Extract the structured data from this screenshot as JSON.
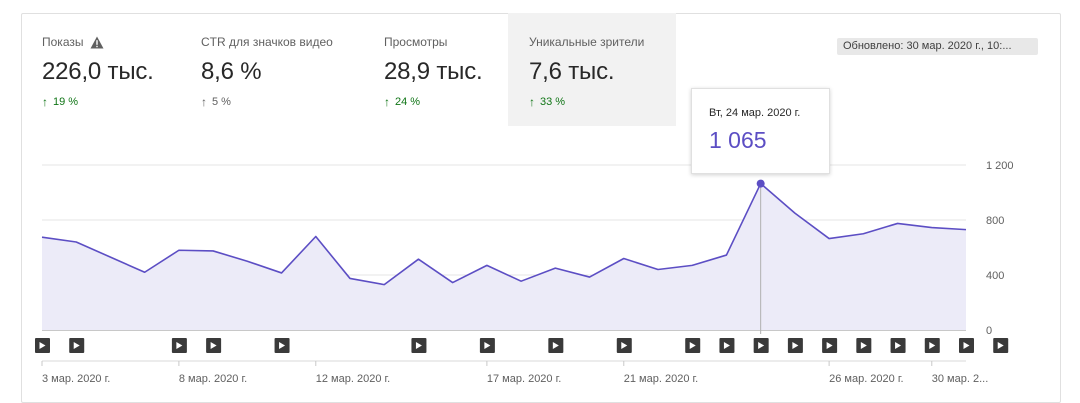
{
  "metrics": [
    {
      "label": "Показы",
      "value": "226,0 тыс.",
      "delta": "19 %",
      "trend": "up-strong",
      "warning": true,
      "selected": false
    },
    {
      "label": "CTR для значков видео",
      "value": "8,6 %",
      "delta": "5 %",
      "trend": "up-weak",
      "warning": false,
      "selected": false
    },
    {
      "label": "Просмотры",
      "value": "28,9 тыс.",
      "delta": "24 %",
      "trend": "up-strong",
      "warning": false,
      "selected": false
    },
    {
      "label": "Уникальные зрители",
      "value": "7,6 тыс.",
      "delta": "33 %",
      "trend": "up-strong",
      "warning": false,
      "selected": true
    }
  ],
  "updated": "Обновлено: 30 мар. 2020 г., 10:...",
  "tooltip": {
    "date": "Вт, 24 мар. 2020 г.",
    "value": "1 065"
  },
  "colors": {
    "line": "#5c4ec4",
    "area": "#ecebf8",
    "positive": "#107516"
  },
  "icons": {
    "warning": "warning-icon",
    "video": "play-icon",
    "trend": "arrow-up-icon"
  },
  "chart_data": {
    "type": "area",
    "x": [
      "2020-03-03",
      "2020-03-04",
      "2020-03-05",
      "2020-03-06",
      "2020-03-07",
      "2020-03-08",
      "2020-03-09",
      "2020-03-10",
      "2020-03-11",
      "2020-03-12",
      "2020-03-13",
      "2020-03-14",
      "2020-03-15",
      "2020-03-16",
      "2020-03-17",
      "2020-03-18",
      "2020-03-19",
      "2020-03-20",
      "2020-03-21",
      "2020-03-22",
      "2020-03-23",
      "2020-03-24",
      "2020-03-25",
      "2020-03-26",
      "2020-03-27",
      "2020-03-28",
      "2020-03-29",
      "2020-03-30"
    ],
    "values": [
      675,
      640,
      530,
      420,
      580,
      575,
      500,
      415,
      680,
      375,
      330,
      515,
      345,
      470,
      355,
      450,
      385,
      520,
      440,
      470,
      545,
      1065,
      850,
      665,
      700,
      775,
      745,
      730
    ],
    "ylim": [
      0,
      1200
    ],
    "yticks": [
      "1 200",
      "800",
      "400",
      "0"
    ],
    "ytick_values": [
      1200,
      800,
      400,
      0
    ],
    "xticks": [
      {
        "label": "3 мар. 2020 г.",
        "x": "2020-03-03"
      },
      {
        "label": "8 мар. 2020 г.",
        "x": "2020-03-07"
      },
      {
        "label": "12 мар. 2020 г.",
        "x": "2020-03-11"
      },
      {
        "label": "17 мар. 2020 г.",
        "x": "2020-03-16"
      },
      {
        "label": "21 мар. 2020 г.",
        "x": "2020-03-20"
      },
      {
        "label": "26 мар. 2020 г.",
        "x": "2020-03-26"
      },
      {
        "label": "30 мар. 2...",
        "x": "2020-03-29"
      }
    ],
    "highlight_x": "2020-03-24",
    "video_markers": [
      "2020-03-03",
      "2020-03-04",
      "2020-03-07",
      "2020-03-08",
      "2020-03-10",
      "2020-03-14",
      "2020-03-16",
      "2020-03-18",
      "2020-03-20",
      "2020-03-22",
      "2020-03-23",
      "2020-03-24",
      "2020-03-25",
      "2020-03-26",
      "2020-03-27",
      "2020-03-28",
      "2020-03-29",
      "2020-03-30",
      "2020-03-31"
    ],
    "grid": true
  }
}
